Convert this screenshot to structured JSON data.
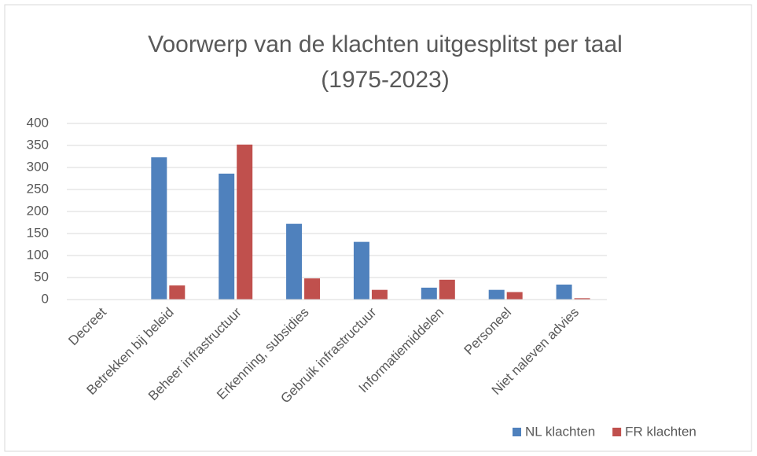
{
  "chart_data": {
    "type": "bar",
    "title": "Voorwerp van de klachten uitgesplitst per taal",
    "subtitle": "(1975-2023)",
    "categories": [
      "Decreet",
      "Betrekken bij beleid",
      "Beheer infrastructuur",
      "Erkenning, subsidies",
      "Gebruik infrastructuur",
      "Informatiemiddelen",
      "Personeel",
      "Niet naleven advies"
    ],
    "series": [
      {
        "name": "NL klachten",
        "color": "#4f81bd",
        "values": [
          0,
          323,
          286,
          172,
          131,
          27,
          22,
          34
        ]
      },
      {
        "name": "FR klachten",
        "color": "#c0504d",
        "values": [
          0,
          32,
          352,
          48,
          22,
          45,
          17,
          3
        ]
      }
    ],
    "ylim": [
      0,
      400
    ],
    "yticks": [
      0,
      50,
      100,
      150,
      200,
      250,
      300,
      350,
      400
    ],
    "grid": true,
    "legend": "bottom-right"
  }
}
